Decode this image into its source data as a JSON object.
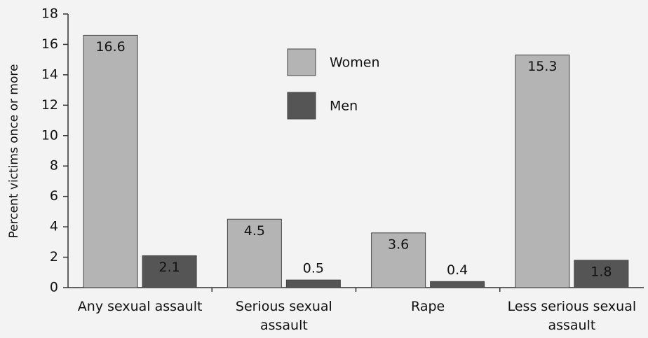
{
  "chart_data": {
    "type": "bar",
    "y_label": "Percent victims once or more",
    "categories": [
      "Any sexual assault",
      "Serious sexual assault",
      "Rape",
      "Less serious sexual assault"
    ],
    "series": [
      {
        "name": "Women",
        "color": "#b4b4b4",
        "values": [
          16.6,
          4.5,
          3.6,
          15.3
        ]
      },
      {
        "name": "Men",
        "color": "#555555",
        "values": [
          2.1,
          0.5,
          0.4,
          1.8
        ]
      }
    ],
    "ylim": [
      0,
      18
    ],
    "yticks": [
      0,
      2,
      4,
      6,
      8,
      10,
      12,
      14,
      16,
      18
    ],
    "legend": "top-center"
  }
}
